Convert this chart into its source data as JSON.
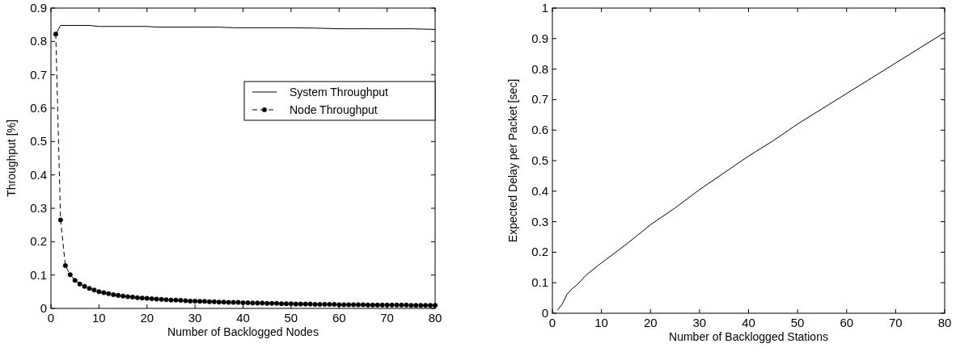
{
  "chart_data": [
    {
      "type": "line",
      "xlabel": "Number of Backlogged Nodes",
      "ylabel": "Throughput [%]",
      "xlim": [
        0,
        80
      ],
      "xticks": [
        0,
        10,
        20,
        30,
        40,
        50,
        60,
        70,
        80
      ],
      "ylim": [
        0,
        0.9
      ],
      "yticks": [
        0,
        0.1,
        0.2,
        0.3,
        0.4,
        0.5,
        0.6,
        0.7,
        0.8,
        0.9
      ],
      "grid": false,
      "legend": "right",
      "series": [
        {
          "name": "System Throughput",
          "color": "#000000",
          "line_style": "solid",
          "marker": "none",
          "x": [
            1,
            2,
            5,
            8,
            10,
            15,
            20,
            22,
            30,
            35,
            38,
            45,
            50,
            55,
            60,
            65,
            70,
            75,
            80
          ],
          "values": [
            0.822,
            0.848,
            0.848,
            0.848,
            0.845,
            0.845,
            0.845,
            0.843,
            0.843,
            0.843,
            0.841,
            0.841,
            0.841,
            0.84,
            0.838,
            0.838,
            0.838,
            0.838,
            0.836
          ]
        },
        {
          "name": "Node Throughput",
          "color": "#000000",
          "line_style": "dashed",
          "marker": "circle",
          "x": [
            1,
            2,
            3,
            4,
            5,
            6,
            7,
            8,
            9,
            10,
            11,
            12,
            13,
            14,
            15,
            16,
            17,
            18,
            19,
            20,
            21,
            22,
            23,
            24,
            25,
            26,
            27,
            28,
            29,
            30,
            31,
            32,
            33,
            34,
            35,
            36,
            37,
            38,
            39,
            40,
            41,
            42,
            43,
            44,
            45,
            46,
            47,
            48,
            49,
            50,
            51,
            52,
            53,
            54,
            55,
            56,
            57,
            58,
            59,
            60,
            61,
            62,
            63,
            64,
            65,
            66,
            67,
            68,
            69,
            70,
            71,
            72,
            73,
            74,
            75,
            76,
            77,
            78,
            79,
            80
          ],
          "values": [
            0.822,
            0.265,
            0.128,
            0.101,
            0.084,
            0.073,
            0.066,
            0.06,
            0.055,
            0.05,
            0.047,
            0.044,
            0.041,
            0.039,
            0.037,
            0.035,
            0.034,
            0.032,
            0.031,
            0.03,
            0.029,
            0.028,
            0.027,
            0.026,
            0.025,
            0.025,
            0.024,
            0.023,
            0.022,
            0.022,
            0.021,
            0.021,
            0.02,
            0.02,
            0.019,
            0.019,
            0.018,
            0.018,
            0.018,
            0.017,
            0.017,
            0.016,
            0.016,
            0.016,
            0.015,
            0.015,
            0.015,
            0.014,
            0.014,
            0.014,
            0.013,
            0.013,
            0.013,
            0.013,
            0.012,
            0.012,
            0.012,
            0.012,
            0.012,
            0.011,
            0.011,
            0.011,
            0.011,
            0.011,
            0.011,
            0.01,
            0.01,
            0.01,
            0.01,
            0.01,
            0.01,
            0.01,
            0.01,
            0.01,
            0.009,
            0.009,
            0.009,
            0.009,
            0.009,
            0.009
          ]
        }
      ]
    },
    {
      "type": "line",
      "xlabel": "Number of Backlogged Stations",
      "ylabel": "Expected Delay per Packet [sec]",
      "xlim": [
        0,
        80
      ],
      "xticks": [
        0,
        10,
        20,
        30,
        40,
        50,
        60,
        70,
        80
      ],
      "ylim": [
        0,
        1
      ],
      "yticks": [
        0,
        0.1,
        0.2,
        0.3,
        0.4,
        0.5,
        0.6,
        0.7,
        0.8,
        0.9,
        1
      ],
      "grid": false,
      "legend": false,
      "series": [
        {
          "color": "#000000",
          "line_style": "solid",
          "marker": "none",
          "x": [
            1,
            2,
            3,
            4,
            5,
            7,
            10,
            15,
            20,
            25,
            30,
            35,
            40,
            45,
            50,
            55,
            60,
            65,
            70,
            75,
            80
          ],
          "values": [
            0.01,
            0.03,
            0.063,
            0.08,
            0.093,
            0.127,
            0.165,
            0.225,
            0.29,
            0.345,
            0.405,
            0.46,
            0.515,
            0.565,
            0.62,
            0.67,
            0.72,
            0.77,
            0.82,
            0.87,
            0.92
          ]
        }
      ]
    }
  ]
}
